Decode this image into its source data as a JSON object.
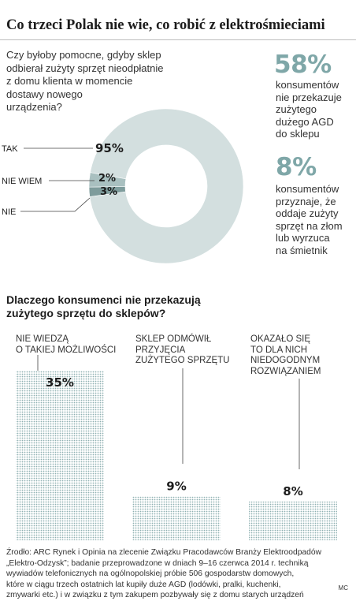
{
  "header": {
    "title": "Co trzeci Polak nie wie, co robić z elektrośmieciami"
  },
  "question1": {
    "lines": [
      "Czy byłoby pomocne, gdyby sklep",
      "odbierał zużyty sprzęt nieodpłatnie",
      "z domu klienta w momencie",
      "dostawy nowego",
      "urządzenia?"
    ]
  },
  "stats": [
    {
      "value": "58%",
      "lines": [
        "konsumentów",
        "nie przekazuje",
        "zużytego",
        "dużego AGD",
        "do sklepu"
      ]
    },
    {
      "value": "8%",
      "lines": [
        "konsumentów",
        "przyznaje, że",
        "oddaje zużyty",
        "sprzęt na złom",
        "lub wyrzuca",
        "na śmietnik"
      ]
    }
  ],
  "question2": {
    "lines": [
      "Dlaczego konsumenci nie przekazują",
      "zużytego sprzętu do sklepów?"
    ]
  },
  "source": {
    "lines": [
      "Źrodło: ARC Rynek i Opinia na zlecenie Związku Pracodawców Branży Elektroodpadów",
      "„Elektro-Odzysk”; badanie przeprowadzone w dniach 9–16 czerwca 2014 r. techniką",
      "wywiadów telefonicznych na ogólnopolskiej próbie 506 gospodarstw domowych,",
      "które w ciągu trzech ostatnich lat kupiły duże AGD (lodówki, pralki, kuchenki,",
      "zmywarki etc.) i w związku z tym zakupem pozbywały się z domu starych urządzeń"
    ],
    "credit": "MC"
  },
  "colors": {
    "accent": "#7fa7a8",
    "donut_main": "#d3dfdf",
    "donut_mid": "#7e9c9c",
    "donut_small": "#a9c0c0",
    "bar_dot": "#8fb1b2"
  },
  "chart_data": [
    {
      "type": "pie",
      "style": "donut",
      "categories": [
        "TAK",
        "NIE WIEM",
        "NIE"
      ],
      "values": [
        95,
        2,
        3
      ],
      "value_labels": [
        "95%",
        "2%",
        "3%"
      ]
    },
    {
      "type": "bar",
      "categories": [
        [
          "NIE WIEDZĄ",
          "O TAKIEJ MOŻLIWOŚCI"
        ],
        [
          "SKLEP ODMÓWIŁ",
          "PRZYJĘCIA",
          "ZUŻYTEGO SPRZĘTU"
        ],
        [
          "OKAZAŁO SIĘ",
          "TO DLA NICH",
          "NIEDOGODNYM",
          "ROZWIĄZANIEM"
        ]
      ],
      "values": [
        35,
        9,
        8
      ],
      "value_labels": [
        "35%",
        "9%",
        "8%"
      ],
      "ylim": [
        0,
        35
      ],
      "grid": false
    }
  ]
}
